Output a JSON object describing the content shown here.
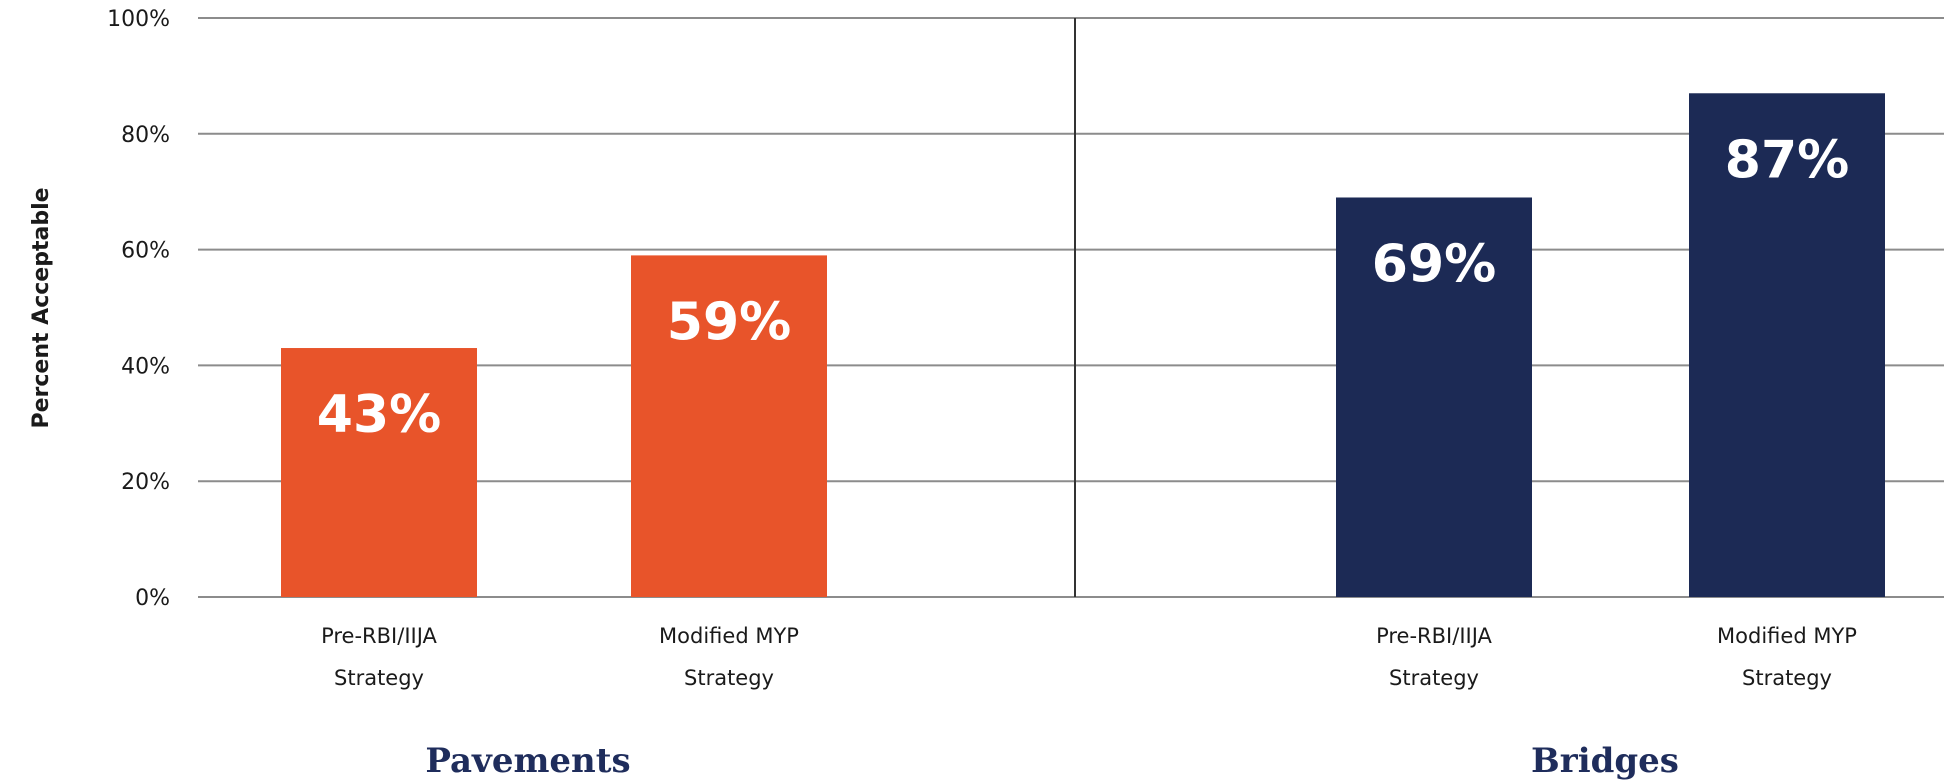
{
  "chart_data": {
    "type": "bar",
    "ylabel": "Percent Acceptable",
    "ylim": [
      0,
      100
    ],
    "yticks": [
      "0%",
      "20%",
      "40%",
      "60%",
      "80%",
      "100%"
    ],
    "grid": true,
    "groups": [
      {
        "name": "Pavements",
        "color": "#e8542a",
        "bars": [
          {
            "category": [
              "Pre-RBI/IIJA",
              "Strategy"
            ],
            "value": 43,
            "label": "43%"
          },
          {
            "category": [
              "Modified MYP",
              "Strategy"
            ],
            "value": 59,
            "label": "59%"
          }
        ]
      },
      {
        "name": "Bridges",
        "color": "#1c2a55",
        "bars": [
          {
            "category": [
              "Pre-RBI/IIJA",
              "Strategy"
            ],
            "value": 69,
            "label": "69%"
          },
          {
            "category": [
              "Modified MYP",
              "Strategy"
            ],
            "value": 87,
            "label": "87%"
          }
        ]
      }
    ]
  }
}
